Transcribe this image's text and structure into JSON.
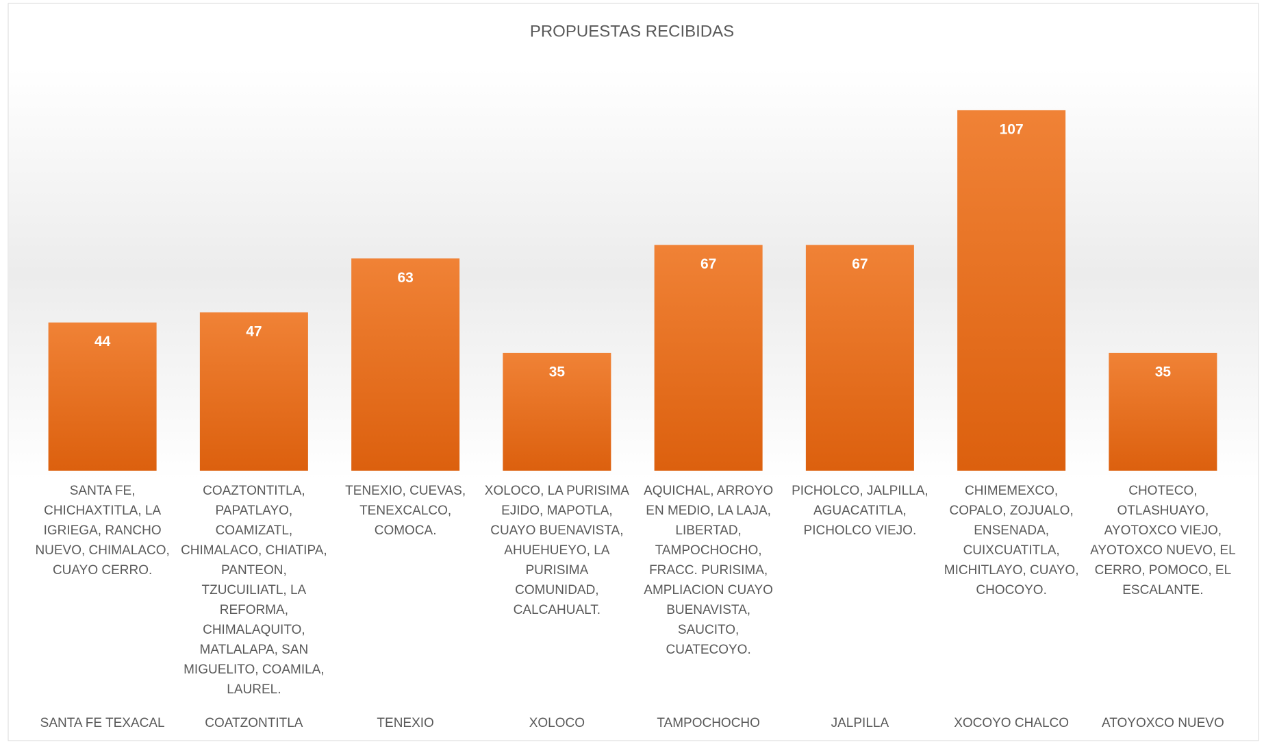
{
  "chart_data": {
    "type": "bar",
    "title": "PROPUESTAS RECIBIDAS",
    "categories": [
      "SANTA FE TEXACAL",
      "COATZONTITLA",
      "TENEXIO",
      "XOLOCO",
      "TAMPOCHOCHO",
      "JALPILLA",
      "XOCOYO CHALCO",
      "ATOYOXCO NUEVO"
    ],
    "subcategories": [
      "SANTA FE, CHICHAXTITLA, LA IGRIEGA, RANCHO NUEVO, CHIMALACO, CUAYO CERRO.",
      "COAZTONTITLA, PAPATLAYO, COAMIZATL, CHIMALACO, CHIATIPA, PANTEON, TZUCUILIATL, LA REFORMA, CHIMALAQUITO, MATLALAPA, SAN MIGUELITO, COAMILA, LAUREL.",
      "TENEXIO, CUEVAS, TENEXCALCO, COMOCA.",
      "XOLOCO, LA PURISIMA EJIDO, MAPOTLA, CUAYO BUENAVISTA, AHUEHUEYO, LA PURISIMA COMUNIDAD, CALCAHUALT.",
      "AQUICHAL, ARROYO EN MEDIO, LA LAJA, LIBERTAD, TAMPOCHOCHO, FRACC. PURISIMA, AMPLIACION CUAYO BUENAVISTA, SAUCITO, CUATECOYO.",
      "PICHOLCO, JALPILLA, AGUACATITLA, PICHOLCO VIEJO.",
      "CHIMEMEXCO, COPALO, ZOJUALO, ENSENADA, CUIXCUATITLA, MICHITLAYO, CUAYO, CHOCOYO.",
      "CHOTECO, OTLASHUAYO, AYOTOXCO VIEJO, AYOTOXCO NUEVO, EL CERRO, POMOCO, EL ESCALANTE."
    ],
    "values": [
      44,
      47,
      63,
      35,
      67,
      67,
      107,
      35
    ],
    "color": "#ed7d31",
    "ylim": [
      0,
      120
    ]
  }
}
